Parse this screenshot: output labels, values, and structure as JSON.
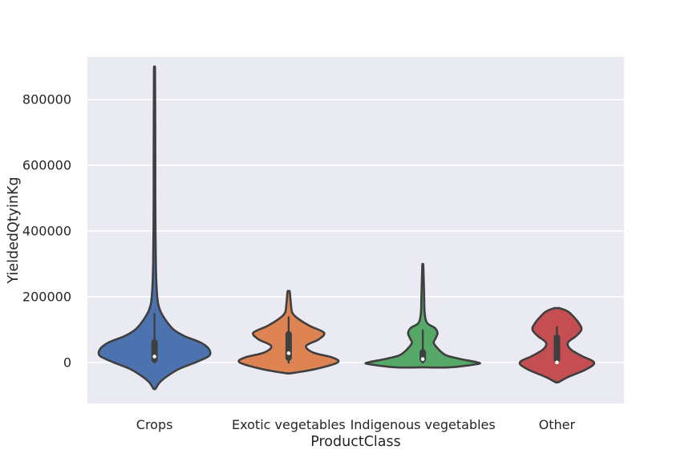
{
  "chart_data": {
    "type": "violin",
    "xlabel": "ProductClass",
    "ylabel": "YieldedQtyinKg",
    "ylim": [
      -125000,
      930000
    ],
    "yticks": [
      0,
      200000,
      400000,
      600000,
      800000
    ],
    "yticklabels": [
      "0",
      "200000",
      "400000",
      "600000",
      "800000"
    ],
    "grid": true,
    "categories": [
      "Crops",
      "Exotic vegetables",
      "Indigenous vegetables",
      "Other"
    ],
    "colors": [
      "#4c72b0",
      "#dd8452",
      "#55a868",
      "#c44e52"
    ],
    "background_color": "#eaeaf2",
    "violins": [
      {
        "category": "Crops",
        "min": -80000,
        "max": 880000,
        "q1": 0,
        "median": 18000,
        "q3": 70000,
        "whisker_low": -3000,
        "whisker_high": 150000,
        "density": [
          [
            -80000,
            0.02
          ],
          [
            -60000,
            0.1
          ],
          [
            -40000,
            0.25
          ],
          [
            -20000,
            0.45
          ],
          [
            0,
            0.75
          ],
          [
            20000,
            1.0
          ],
          [
            40000,
            1.0
          ],
          [
            60000,
            0.85
          ],
          [
            80000,
            0.55
          ],
          [
            100000,
            0.35
          ],
          [
            130000,
            0.2
          ],
          [
            160000,
            0.1
          ],
          [
            200000,
            0.05
          ],
          [
            300000,
            0.025
          ],
          [
            500000,
            0.015
          ],
          [
            600000,
            0.015
          ],
          [
            880000,
            0.01
          ]
        ]
      },
      {
        "category": "Exotic vegetables",
        "min": -33000,
        "max": 215000,
        "q1": 5000,
        "median": 28000,
        "q3": 95000,
        "whisker_low": -3000,
        "whisker_high": 140000,
        "density": [
          [
            -33000,
            0.05
          ],
          [
            -20000,
            0.5
          ],
          [
            0,
            0.9
          ],
          [
            15000,
            0.8
          ],
          [
            30000,
            0.45
          ],
          [
            50000,
            0.32
          ],
          [
            70000,
            0.55
          ],
          [
            90000,
            0.65
          ],
          [
            110000,
            0.4
          ],
          [
            130000,
            0.2
          ],
          [
            150000,
            0.07
          ],
          [
            180000,
            0.04
          ],
          [
            215000,
            0.02
          ]
        ]
      },
      {
        "category": "Indigenous vegetables",
        "min": -15000,
        "max": 293000,
        "q1": 0,
        "median": 10000,
        "q3": 40000,
        "whisker_low": -3000,
        "whisker_high": 100000,
        "density": [
          [
            -15000,
            0.5
          ],
          [
            -5000,
            1.0
          ],
          [
            0,
            1.0
          ],
          [
            10000,
            0.7
          ],
          [
            20000,
            0.45
          ],
          [
            30000,
            0.35
          ],
          [
            45000,
            0.26
          ],
          [
            60000,
            0.2
          ],
          [
            75000,
            0.24
          ],
          [
            90000,
            0.27
          ],
          [
            105000,
            0.22
          ],
          [
            120000,
            0.08
          ],
          [
            150000,
            0.035
          ],
          [
            200000,
            0.025
          ],
          [
            293000,
            0.01
          ]
        ]
      },
      {
        "category": "Other",
        "min": -60000,
        "max": 165000,
        "q1": 0,
        "median": 0,
        "q3": 85000,
        "whisker_low": -3000,
        "whisker_high": 110000,
        "density": [
          [
            -60000,
            0.03
          ],
          [
            -45000,
            0.2
          ],
          [
            -20000,
            0.55
          ],
          [
            0,
            0.68
          ],
          [
            20000,
            0.45
          ],
          [
            40000,
            0.25
          ],
          [
            60000,
            0.2
          ],
          [
            80000,
            0.35
          ],
          [
            100000,
            0.45
          ],
          [
            120000,
            0.4
          ],
          [
            140000,
            0.3
          ],
          [
            155000,
            0.2
          ],
          [
            165000,
            0.05
          ]
        ]
      }
    ]
  }
}
